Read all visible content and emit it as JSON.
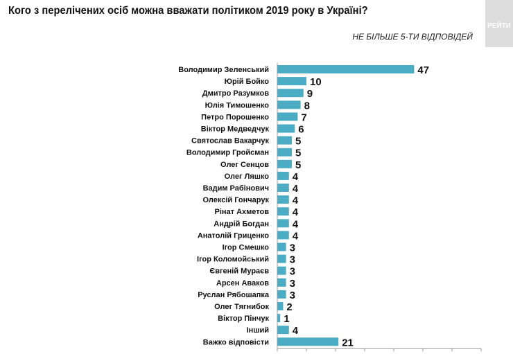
{
  "title": "Кого з перелічених осіб можна вважати політиком 2019 року в Україні?",
  "subtitle": "НЕ БІЛЬШЕ 5-ТИ ВІДПОВІДЕЙ",
  "watermark": "РЕЙТИНГ",
  "chart_data": {
    "type": "bar",
    "orientation": "horizontal",
    "categories": [
      "Володимир Зеленський",
      "Юрій Бойко",
      "Дмитро Разумков",
      "Юлія Тимошенко",
      "Петро Порошенко",
      "Віктор Медведчук",
      "Святослав Вакарчук",
      "Володимир Гройсман",
      "Олег Сенцов",
      "Олег Ляшко",
      "Вадим Рабінович",
      "Олексій Гончарук",
      "Рінат Ахметов",
      "Андрій Богдан",
      "Анатолій Гриценко",
      "Ігор Смешко",
      "Ігор Коломойський",
      "Євгеній Мураєв",
      "Арсен Аваков",
      "Руслан Рябошапка",
      "Олег Тягнибок",
      "Віктор Пінчук",
      "Інший",
      "Важко відповісти"
    ],
    "values": [
      47,
      10,
      9,
      8,
      7,
      6,
      5,
      5,
      5,
      4,
      4,
      4,
      4,
      4,
      4,
      3,
      3,
      3,
      3,
      3,
      2,
      1,
      4,
      21
    ],
    "xlim": [
      0,
      70
    ],
    "xticks": [
      0,
      10,
      20,
      30,
      40,
      50,
      60,
      70
    ],
    "grid": false,
    "color": "#4bacc6"
  }
}
